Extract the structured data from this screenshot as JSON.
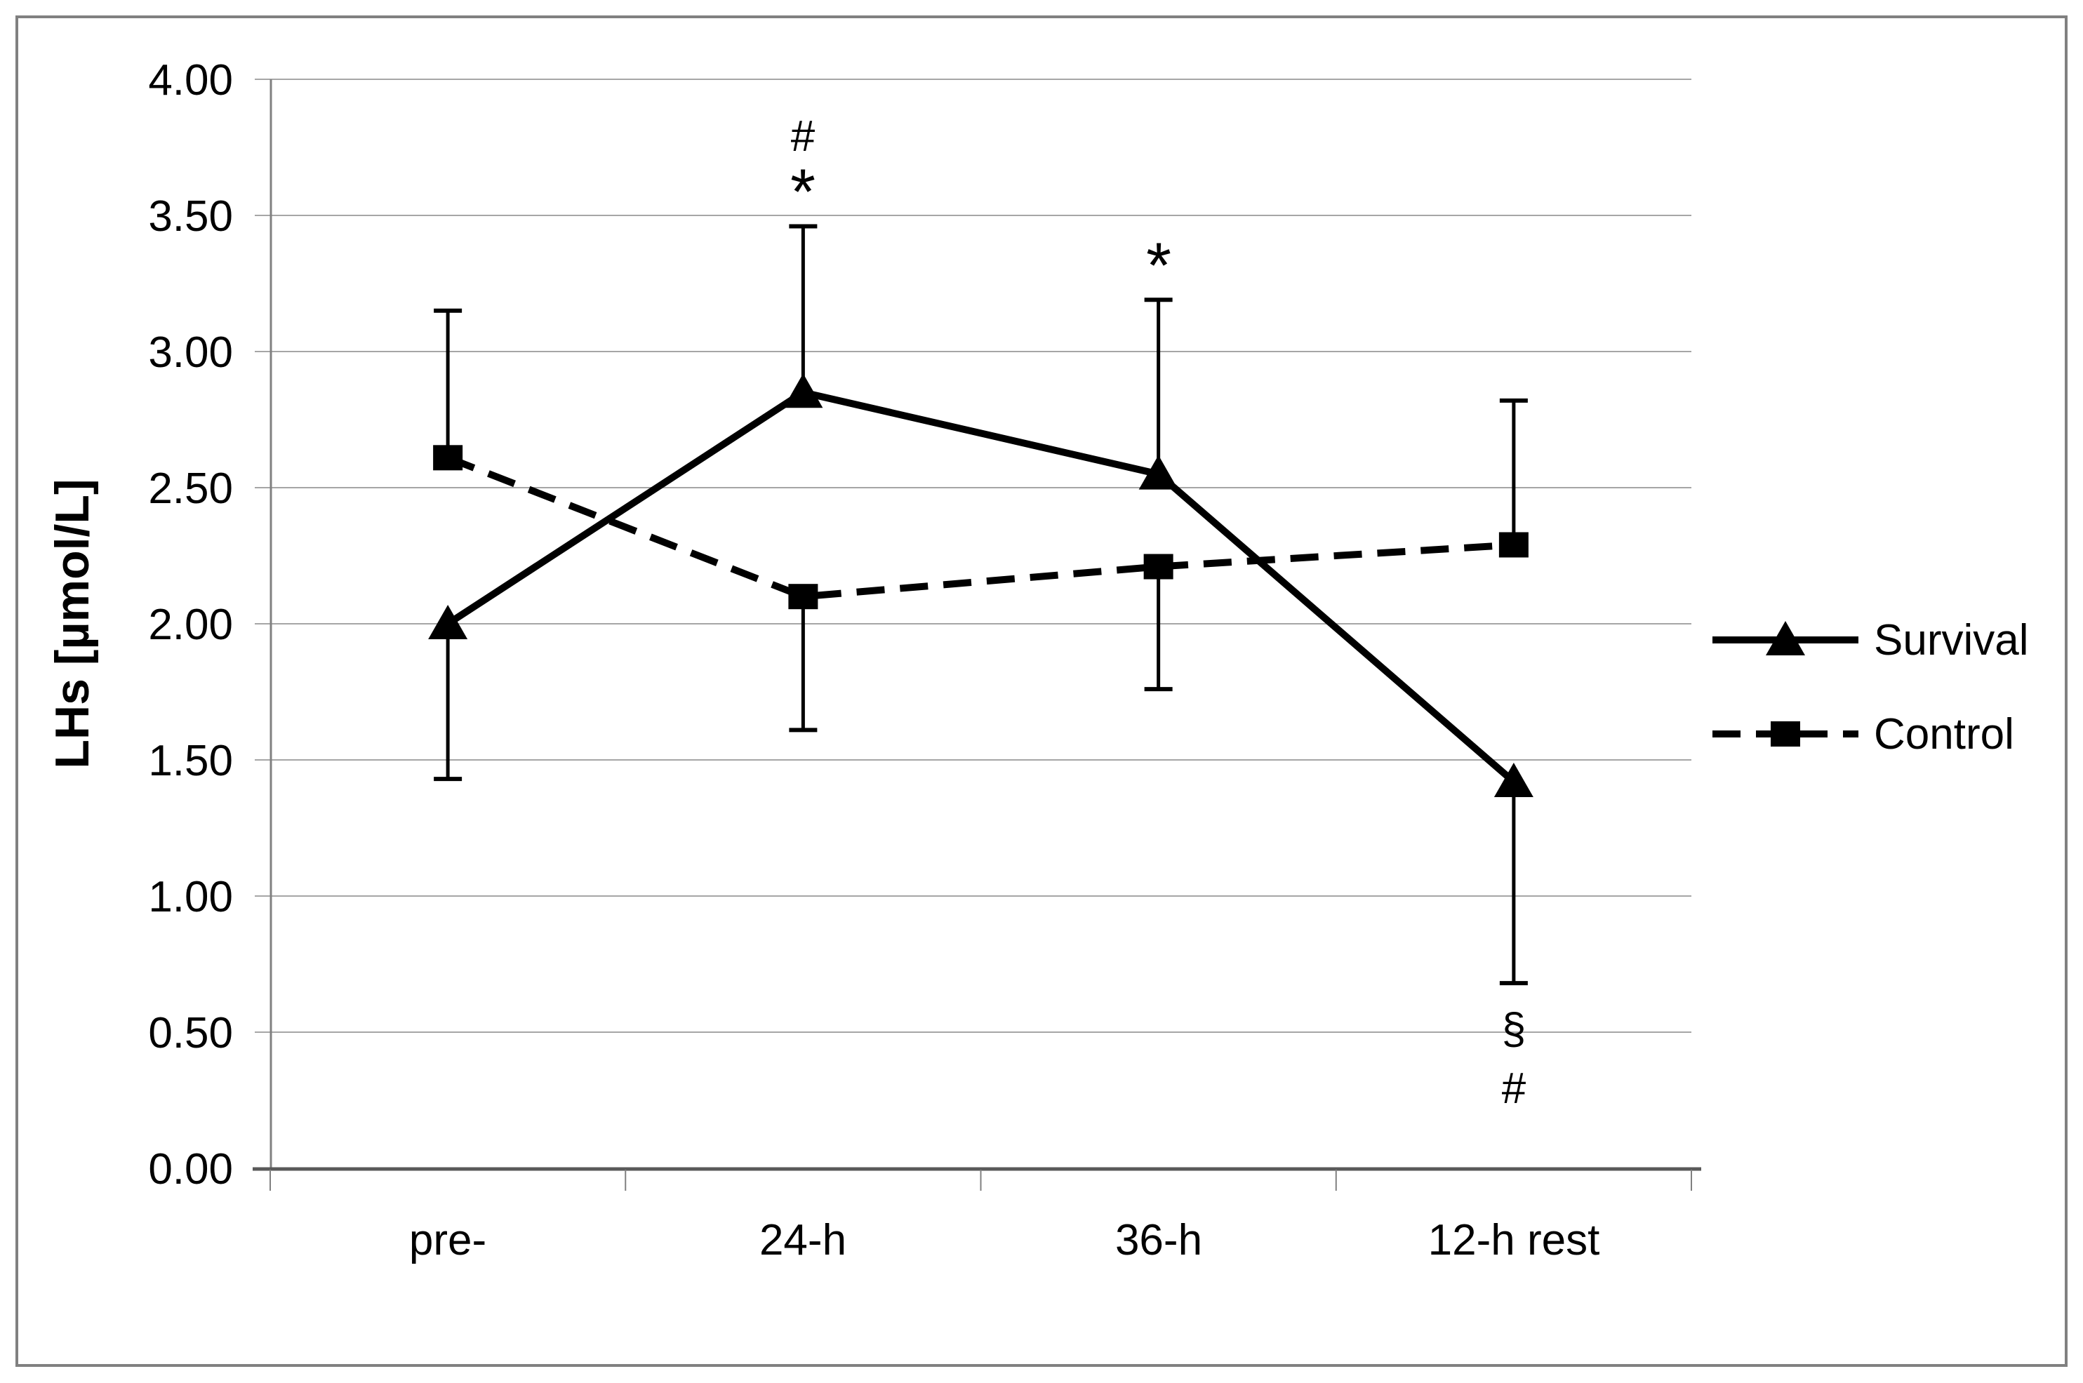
{
  "chart_data": {
    "type": "line",
    "title": "",
    "xlabel": "",
    "ylabel": "LHs [µmol/L]",
    "categories": [
      "pre-",
      "24-h",
      "36-h",
      "12-h rest"
    ],
    "ylim": [
      0,
      4
    ],
    "ytick_step": 0.5,
    "ytick_labels": [
      "4.00",
      "3.50",
      "3.00",
      "2.50",
      "2.00",
      "1.50",
      "1.00",
      "0.50",
      "0.00"
    ],
    "grid": "horizontal",
    "legend_position": "right",
    "series": [
      {
        "name": "Survival",
        "line_style": "solid",
        "marker": "triangle",
        "color": "#000000",
        "values": [
          2.0,
          2.85,
          2.55,
          1.42
        ],
        "error_upper": [
          null,
          3.46,
          3.19,
          null
        ],
        "error_lower": [
          1.43,
          null,
          null,
          0.68
        ]
      },
      {
        "name": "Control",
        "line_style": "dashed",
        "marker": "square",
        "color": "#000000",
        "values": [
          2.61,
          2.1,
          2.21,
          2.29
        ],
        "error_upper": [
          3.15,
          null,
          null,
          2.82
        ],
        "error_lower": [
          null,
          1.61,
          1.76,
          null
        ]
      }
    ],
    "annotations": [
      {
        "text": "#",
        "category": "24-h",
        "placement": "above upper error bar",
        "order": 1
      },
      {
        "text": "*",
        "category": "24-h",
        "placement": "above upper error bar",
        "order": 2
      },
      {
        "text": "*",
        "category": "36-h",
        "placement": "above upper error bar",
        "order": 1
      },
      {
        "text": "§",
        "category": "12-h rest",
        "placement": "below lower error bar",
        "order": 1
      },
      {
        "text": "#",
        "category": "12-h rest",
        "placement": "below lower error bar",
        "order": 2
      }
    ],
    "colors": {
      "series": "#000000",
      "grid": "#a6a6a6",
      "axis": "#808080",
      "x_axis_line": "#595959",
      "frame": "#808080",
      "background": "#ffffff"
    }
  }
}
